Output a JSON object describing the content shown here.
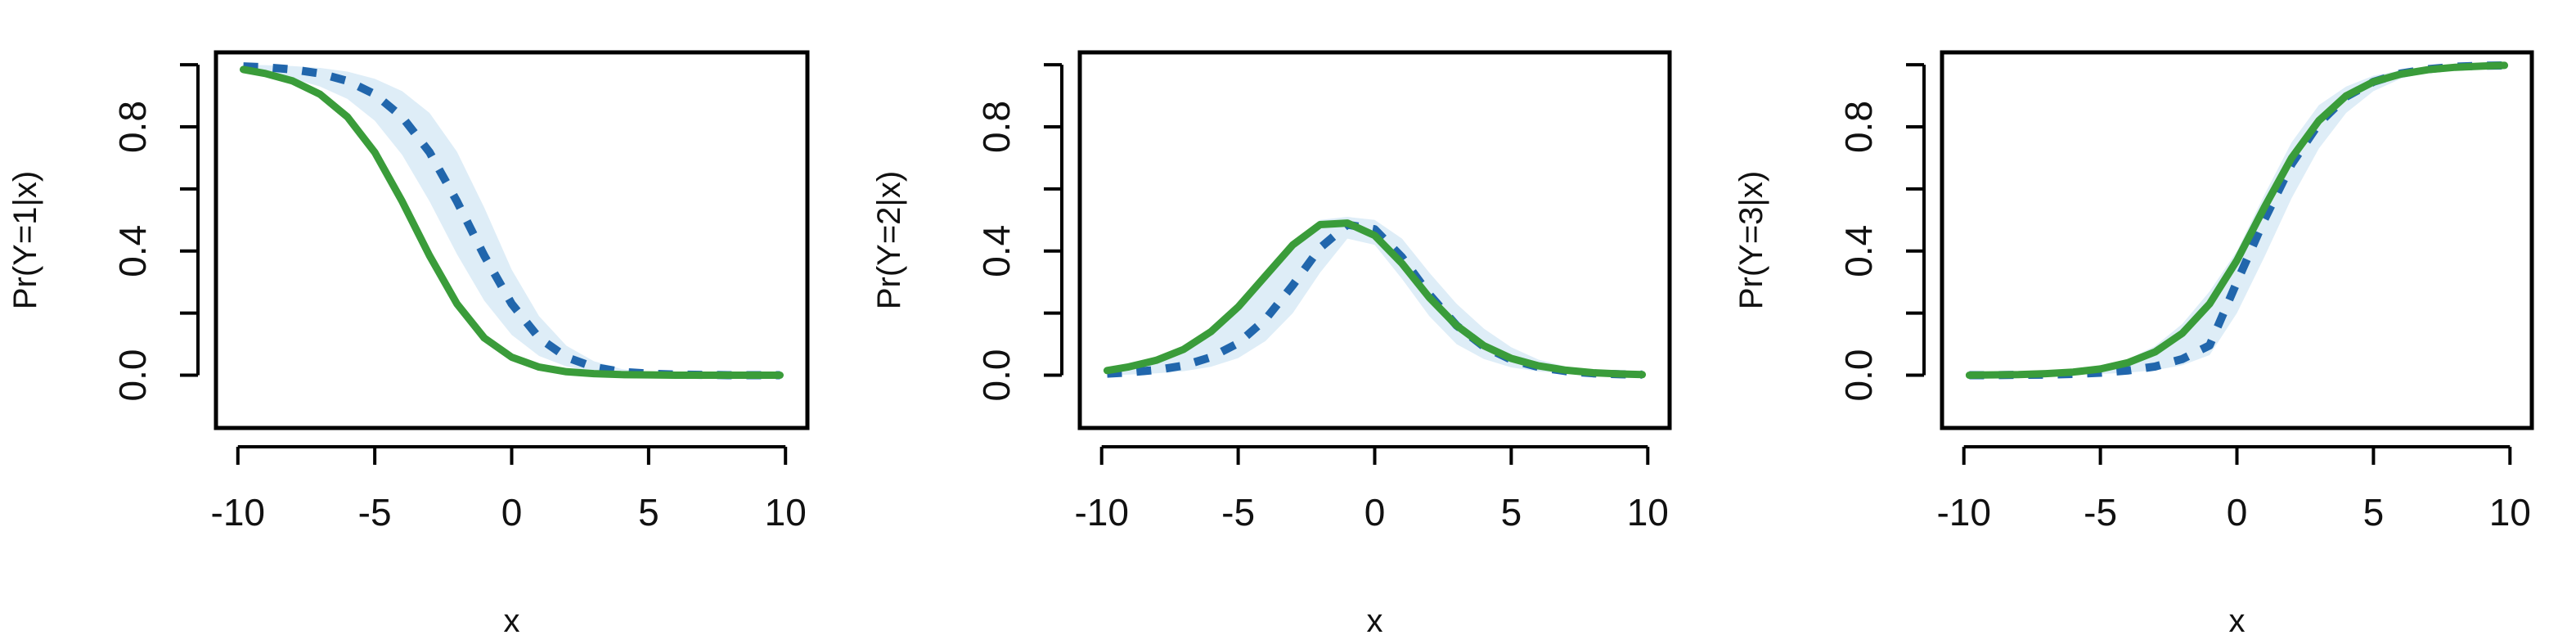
{
  "chart_data": [
    {
      "type": "line",
      "title": "",
      "xlabel": "x",
      "ylabel": "Pr(Y=1|x)",
      "xlim": [
        -10,
        10
      ],
      "ylim": [
        0,
        1
      ],
      "xticks": [
        -10,
        -5,
        0,
        5,
        10
      ],
      "xtick_labels": [
        "-10",
        "-5",
        "0",
        "5",
        "10"
      ],
      "yticks": [
        0,
        0.2,
        0.4,
        0.6,
        0.8,
        1
      ],
      "ytick_labels": [
        "0.0",
        "",
        "0.4",
        "",
        "0.8",
        ""
      ],
      "grid": false,
      "band_color": "#deedf7",
      "x": [
        -9.8,
        -9,
        -8,
        -7,
        -6,
        -5,
        -4,
        -3,
        -2,
        -1,
        0,
        1,
        2,
        3,
        4,
        5,
        6,
        7,
        8,
        9,
        9.8
      ],
      "series": [
        {
          "style": "dashed",
          "color": "#2166ac",
          "values": [
            0.995,
            0.992,
            0.985,
            0.972,
            0.948,
            0.905,
            0.832,
            0.718,
            0.56,
            0.385,
            0.23,
            0.12,
            0.058,
            0.026,
            0.011,
            0.005,
            0.002,
            0.001,
            0.0,
            0.0,
            0.0
          ]
        },
        {
          "style": "solid",
          "color": "#3a9c3a",
          "values": [
            0.985,
            0.972,
            0.948,
            0.905,
            0.832,
            0.718,
            0.56,
            0.385,
            0.23,
            0.12,
            0.058,
            0.026,
            0.011,
            0.005,
            0.002,
            0.001,
            0.0,
            0.0,
            0.0,
            0.0,
            0.0
          ]
        }
      ],
      "band": {
        "lower": [
          0.99,
          0.975,
          0.955,
          0.93,
          0.89,
          0.82,
          0.71,
          0.56,
          0.39,
          0.24,
          0.13,
          0.062,
          0.028,
          0.012,
          0.005,
          0.002,
          0.001,
          0.0,
          0.0,
          0.0,
          0.0
        ],
        "upper": [
          1.0,
          0.999,
          0.996,
          0.99,
          0.978,
          0.955,
          0.915,
          0.845,
          0.72,
          0.54,
          0.34,
          0.19,
          0.095,
          0.045,
          0.02,
          0.009,
          0.004,
          0.002,
          0.001,
          0.0,
          0.0
        ]
      }
    },
    {
      "type": "line",
      "title": "",
      "xlabel": "x",
      "ylabel": "Pr(Y=2|x)",
      "xlim": [
        -10,
        10
      ],
      "ylim": [
        0,
        1
      ],
      "xticks": [
        -10,
        -5,
        0,
        5,
        10
      ],
      "xtick_labels": [
        "-10",
        "-5",
        "0",
        "5",
        "10"
      ],
      "yticks": [
        0,
        0.2,
        0.4,
        0.6,
        0.8,
        1
      ],
      "ytick_labels": [
        "0.0",
        "",
        "0.4",
        "",
        "0.8",
        ""
      ],
      "grid": false,
      "band_color": "#deedf7",
      "x": [
        -9.8,
        -9,
        -8,
        -7,
        -6,
        -5,
        -4,
        -3,
        -2,
        -1,
        0,
        1,
        2,
        3,
        4,
        5,
        6,
        7,
        8,
        9,
        9.8
      ],
      "series": [
        {
          "style": "dashed",
          "color": "#2166ac",
          "values": [
            0.005,
            0.009,
            0.017,
            0.031,
            0.058,
            0.103,
            0.18,
            0.29,
            0.41,
            0.485,
            0.47,
            0.38,
            0.26,
            0.16,
            0.092,
            0.05,
            0.026,
            0.013,
            0.006,
            0.003,
            0.002
          ]
        },
        {
          "style": "solid",
          "color": "#3a9c3a",
          "values": [
            0.015,
            0.027,
            0.048,
            0.083,
            0.14,
            0.22,
            0.32,
            0.42,
            0.485,
            0.49,
            0.45,
            0.36,
            0.25,
            0.16,
            0.095,
            0.054,
            0.03,
            0.016,
            0.008,
            0.004,
            0.002
          ]
        }
      ],
      "band": {
        "lower": [
          0.0,
          0.002,
          0.006,
          0.013,
          0.027,
          0.055,
          0.11,
          0.2,
          0.33,
          0.44,
          0.42,
          0.31,
          0.19,
          0.1,
          0.052,
          0.025,
          0.012,
          0.006,
          0.002,
          0.001,
          0.0
        ],
        "upper": [
          0.02,
          0.034,
          0.058,
          0.095,
          0.15,
          0.23,
          0.33,
          0.43,
          0.5,
          0.51,
          0.5,
          0.44,
          0.33,
          0.23,
          0.15,
          0.09,
          0.05,
          0.028,
          0.015,
          0.008,
          0.005
        ]
      }
    },
    {
      "type": "line",
      "title": "",
      "xlabel": "x",
      "ylabel": "Pr(Y=3|x)",
      "xlim": [
        -10,
        10
      ],
      "ylim": [
        0,
        1
      ],
      "xticks": [
        -10,
        -5,
        0,
        5,
        10
      ],
      "xtick_labels": [
        "-10",
        "-5",
        "0",
        "5",
        "10"
      ],
      "yticks": [
        0,
        0.2,
        0.4,
        0.6,
        0.8,
        1
      ],
      "ytick_labels": [
        "0.0",
        "",
        "0.4",
        "",
        "0.8",
        ""
      ],
      "grid": false,
      "band_color": "#deedf7",
      "x": [
        -9.8,
        -9,
        -8,
        -7,
        -6,
        -5,
        -4,
        -3,
        -2,
        -1,
        0,
        1,
        2,
        3,
        4,
        5,
        6,
        7,
        8,
        9,
        9.8
      ],
      "series": [
        {
          "style": "dashed",
          "color": "#2166ac",
          "values": [
            0.0,
            0.0,
            0.001,
            0.002,
            0.004,
            0.008,
            0.015,
            0.028,
            0.052,
            0.096,
            0.3,
            0.5,
            0.68,
            0.81,
            0.897,
            0.945,
            0.972,
            0.986,
            0.994,
            0.997,
            0.998
          ]
        },
        {
          "style": "solid",
          "color": "#3a9c3a",
          "values": [
            0.0,
            0.001,
            0.002,
            0.005,
            0.01,
            0.02,
            0.04,
            0.075,
            0.135,
            0.23,
            0.37,
            0.54,
            0.7,
            0.82,
            0.9,
            0.945,
            0.97,
            0.984,
            0.992,
            0.996,
            0.998
          ]
        }
      ],
      "band": {
        "lower": [
          0.0,
          0.0,
          0.0,
          0.001,
          0.002,
          0.004,
          0.008,
          0.016,
          0.032,
          0.065,
          0.2,
          0.38,
          0.57,
          0.73,
          0.845,
          0.915,
          0.955,
          0.977,
          0.988,
          0.994,
          0.996
        ],
        "upper": [
          0.0,
          0.001,
          0.003,
          0.007,
          0.014,
          0.027,
          0.051,
          0.094,
          0.165,
          0.27,
          0.4,
          0.58,
          0.75,
          0.87,
          0.93,
          0.965,
          0.982,
          0.991,
          0.996,
          0.998,
          0.999
        ]
      }
    }
  ]
}
